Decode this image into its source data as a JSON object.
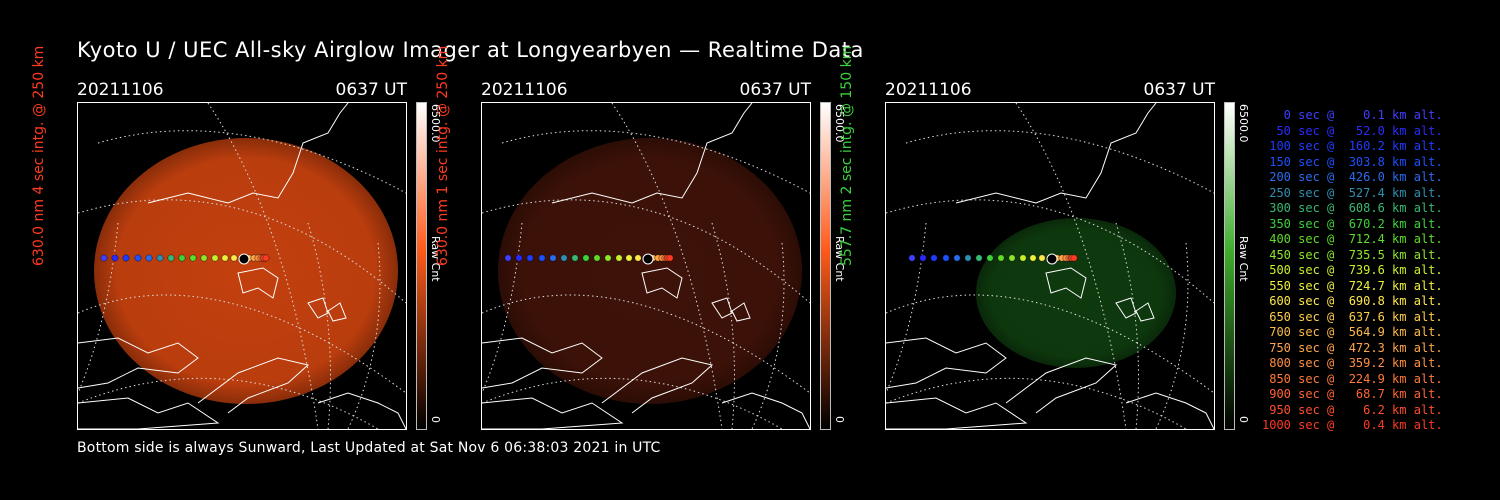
{
  "page_title": "Kyoto U / UEC All-sky Airglow Imager at Longyearbyen — Realtime Data",
  "footer_text": "Bottom side is always Sunward, Last Updated at Sat Nov  6 06:38:03 2021 in UTC",
  "panels": [
    {
      "date": "20211106",
      "time": "0637 UT",
      "ylabel": "630.0 nm 4 sec intg. @ 250 km",
      "ylabel_color": "#ff3b1f",
      "colorbar_max": "6500.0",
      "colorbar_unit": "Raw Cnt",
      "colorbar_min": "0",
      "colorbar_color": "#ff5a1a",
      "image_color": "#c3400e",
      "image_intensity": 1.0
    },
    {
      "date": "20211106",
      "time": "0637 UT",
      "ylabel": "630.0 nm 1 sec intg. @ 250 km",
      "ylabel_color": "#ff3b1f",
      "colorbar_max": "6500.0",
      "colorbar_unit": "Raw Cnt",
      "colorbar_min": "0",
      "colorbar_color": "#ff5a1a",
      "image_color": "#3e1208",
      "image_intensity": 0.35
    },
    {
      "date": "20211106",
      "time": "0637 UT",
      "ylabel": "557.7 nm 2 sec intg. @ 150 km",
      "ylabel_color": "#3cd23c",
      "colorbar_max": "6500.0",
      "colorbar_unit": "Raw Cnt",
      "colorbar_min": "0",
      "colorbar_color": "#3fae2c",
      "image_color": "#0e3a0e",
      "image_intensity": 0.35
    }
  ],
  "trajectory_legend": [
    {
      "text": "   0 sec @    0.1 km alt.",
      "color": "#3f3fff"
    },
    {
      "text": "  50 sec @   52.0 km alt.",
      "color": "#2a2aff"
    },
    {
      "text": " 100 sec @  160.2 km alt.",
      "color": "#1e3cff"
    },
    {
      "text": " 150 sec @  303.8 km alt.",
      "color": "#1e50ff"
    },
    {
      "text": " 200 sec @  426.0 km alt.",
      "color": "#2a6cf0"
    },
    {
      "text": " 250 sec @  527.4 km alt.",
      "color": "#2e8fb0"
    },
    {
      "text": " 300 sec @  608.6 km alt.",
      "color": "#37b873"
    },
    {
      "text": " 350 sec @  670.2 km alt.",
      "color": "#3ed23a"
    },
    {
      "text": " 400 sec @  712.4 km alt.",
      "color": "#5fdc2a"
    },
    {
      "text": " 450 sec @  735.5 km alt.",
      "color": "#8ee62a"
    },
    {
      "text": " 500 sec @  739.6 km alt.",
      "color": "#c8f02a"
    },
    {
      "text": " 550 sec @  724.7 km alt.",
      "color": "#eef23a"
    },
    {
      "text": " 600 sec @  690.8 km alt.",
      "color": "#ffe84a"
    },
    {
      "text": " 650 sec @  637.6 km alt.",
      "color": "#ffcf4a"
    },
    {
      "text": " 700 sec @  564.9 km alt.",
      "color": "#ffba4a"
    },
    {
      "text": " 750 sec @  472.3 km alt.",
      "color": "#ffa548"
    },
    {
      "text": " 800 sec @  359.2 km alt.",
      "color": "#ff9040"
    },
    {
      "text": " 850 sec @  224.9 km alt.",
      "color": "#ff7a3a"
    },
    {
      "text": " 900 sec @   68.7 km alt.",
      "color": "#ff6432"
    },
    {
      "text": " 950 sec @    6.2 km alt.",
      "color": "#ff4e2a"
    },
    {
      "text": "1000 sec @    0.4 km alt.",
      "color": "#ff3a22"
    }
  ]
}
